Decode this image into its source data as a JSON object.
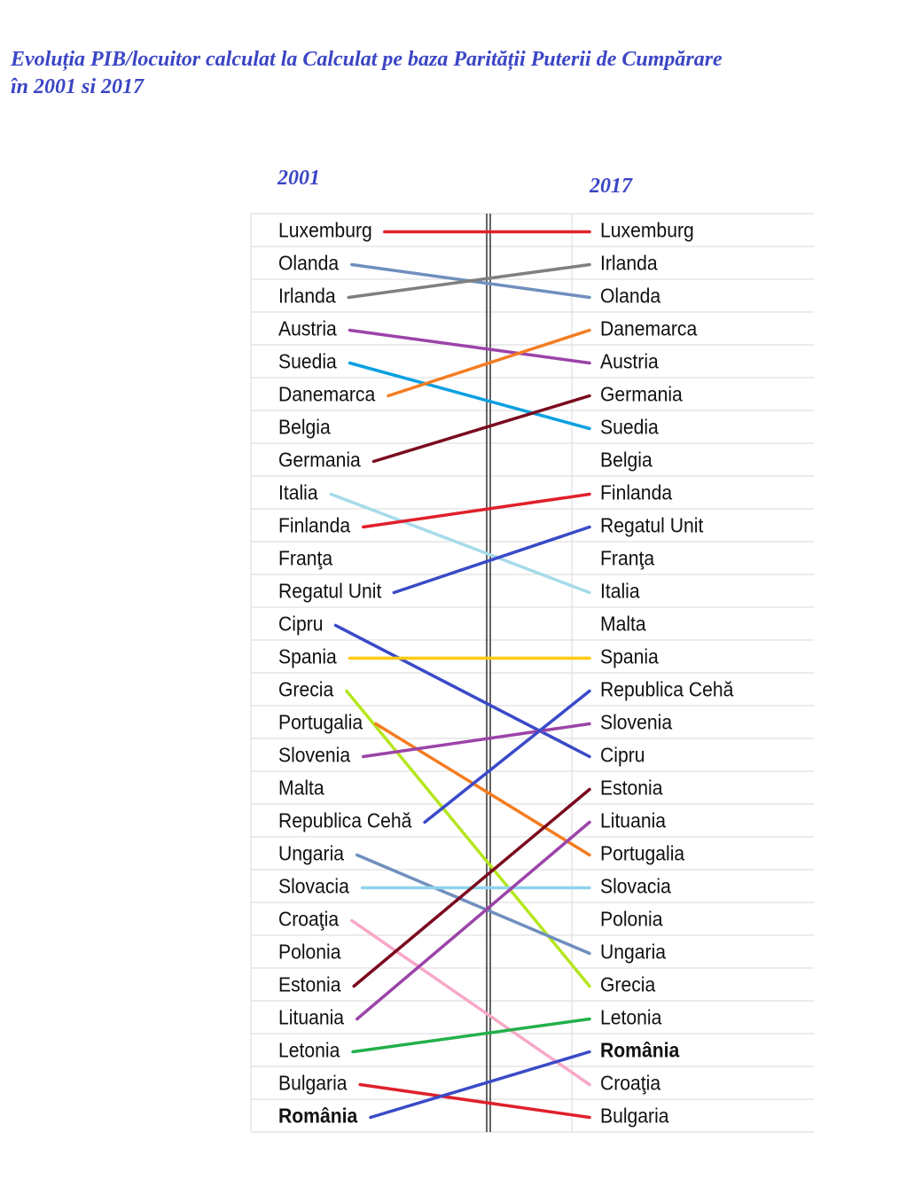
{
  "title_lines": [
    "Evoluția PIB/locuitor  calculat la Calculat pe baza Parității Puterii de Cumpărare",
    "în 2001 si 2017"
  ],
  "colors": {
    "title": "#3b45c4",
    "grid": "#d9d9d9",
    "axis": "#222222"
  },
  "chart_data": {
    "type": "slope",
    "columns": [
      "2001",
      "2017"
    ],
    "bold_labels": [
      "România"
    ],
    "left_ranking": [
      "Luxemburg",
      "Olanda",
      "Irlanda",
      "Austria",
      "Suedia",
      "Danemarca",
      "Belgia",
      "Germania",
      "Italia",
      "Finlanda",
      "Franţa",
      "Regatul Unit",
      "Cipru",
      "Spania",
      "Grecia",
      "Portugalia",
      "Slovenia",
      "Malta",
      "Republica Cehă",
      "Ungaria",
      "Slovacia",
      "Croaţia",
      "Polonia",
      "Estonia",
      "Lituania",
      "Letonia",
      "Bulgaria",
      "România"
    ],
    "right_ranking": [
      "Luxemburg",
      "Irlanda",
      "Olanda",
      "Danemarca",
      "Austria",
      "Germania",
      "Suedia",
      "Belgia",
      "Finlanda",
      "Regatul Unit",
      "Franţa",
      "Italia",
      "Malta",
      "Spania",
      "Republica Cehă",
      "Slovenia",
      "Cipru",
      "Estonia",
      "Lituania",
      "Portugalia",
      "Slovacia",
      "Polonia",
      "Ungaria",
      "Grecia",
      "Letonia",
      "România",
      "Croaţia",
      "Bulgaria"
    ],
    "connections": [
      {
        "country": "Luxemburg",
        "from_rank": 1,
        "to_rank": 1,
        "color": "#e0202b"
      },
      {
        "country": "Olanda",
        "from_rank": 2,
        "to_rank": 3,
        "color": "#6f8fbd"
      },
      {
        "country": "Irlanda",
        "from_rank": 3,
        "to_rank": 2,
        "color": "#7f7f7f"
      },
      {
        "country": "Austria",
        "from_rank": 4,
        "to_rank": 5,
        "color": "#9b44a8"
      },
      {
        "country": "Suedia",
        "from_rank": 5,
        "to_rank": 7,
        "color": "#0aa0e0"
      },
      {
        "country": "Danemarca",
        "from_rank": 6,
        "to_rank": 4,
        "color": "#f47c20"
      },
      {
        "country": "Germania",
        "from_rank": 8,
        "to_rank": 6,
        "color": "#7a0a1e"
      },
      {
        "country": "Italia",
        "from_rank": 9,
        "to_rank": 12,
        "color": "#a6dbea"
      },
      {
        "country": "Finlanda",
        "from_rank": 10,
        "to_rank": 9,
        "color": "#e0202b"
      },
      {
        "country": "Regatul Unit",
        "from_rank": 12,
        "to_rank": 10,
        "color": "#3a4ac8"
      },
      {
        "country": "Cipru",
        "from_rank": 13,
        "to_rank": 17,
        "color": "#3a4ac8"
      },
      {
        "country": "Spania",
        "from_rank": 14,
        "to_rank": 14,
        "color": "#ffc90e"
      },
      {
        "country": "Grecia",
        "from_rank": 15,
        "to_rank": 24,
        "color": "#b5e61d"
      },
      {
        "country": "Portugalia",
        "from_rank": 16,
        "to_rank": 20,
        "color": "#f47c20"
      },
      {
        "country": "Slovenia",
        "from_rank": 17,
        "to_rank": 16,
        "color": "#9b44a8"
      },
      {
        "country": "Republica Cehă",
        "from_rank": 19,
        "to_rank": 15,
        "color": "#3a4ac8"
      },
      {
        "country": "Ungaria",
        "from_rank": 20,
        "to_rank": 23,
        "color": "#6f8fbd"
      },
      {
        "country": "Slovacia",
        "from_rank": 21,
        "to_rank": 21,
        "color": "#8fd3ec"
      },
      {
        "country": "Croaţia",
        "from_rank": 22,
        "to_rank": 27,
        "color": "#f7a8c8"
      },
      {
        "country": "Estonia",
        "from_rank": 24,
        "to_rank": 18,
        "color": "#7a0a1e"
      },
      {
        "country": "Lituania",
        "from_rank": 25,
        "to_rank": 19,
        "color": "#9b44a8"
      },
      {
        "country": "Letonia",
        "from_rank": 26,
        "to_rank": 25,
        "color": "#22b04a"
      },
      {
        "country": "Bulgaria",
        "from_rank": 27,
        "to_rank": 28,
        "color": "#e0202b"
      },
      {
        "country": "România",
        "from_rank": 28,
        "to_rank": 26,
        "color": "#3a4ac8"
      }
    ]
  }
}
